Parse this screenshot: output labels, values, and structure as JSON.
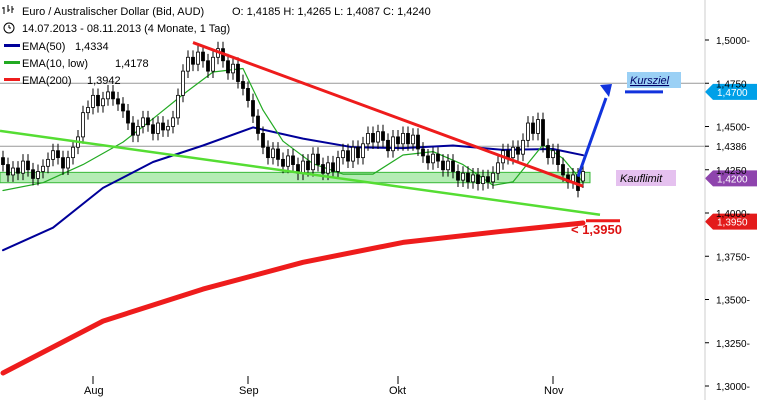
{
  "header": {
    "instrument": "Euro / Australischer Dollar (Bid, AUD)",
    "ohlc": "O: 1,4185  H: 1,4265  L: 1,4087  C: 1,4240",
    "period": "14.07.2013 - 08.11.2013 (4 Monate, 1 Tag)"
  },
  "legend": [
    {
      "label": "EMA(50)",
      "value": "1,4334",
      "color": "#000099"
    },
    {
      "label": "EMA(10, low)",
      "value": "1,4178",
      "color": "#22aa22"
    },
    {
      "label": "EMA(200)",
      "value": "1,3942",
      "color": "#ee1c1c"
    }
  ],
  "annotations": {
    "kursziel": "Kursziel",
    "kauflimit": "Kauflimit",
    "stop_label": "< 1,3950"
  },
  "chart_data": {
    "type": "line",
    "ylim": [
      1.3,
      1.51
    ],
    "y_ticks": [
      "1,5000-",
      "1,4750",
      "1,4500-",
      "1,4386",
      "1,4250",
      "1,4000-",
      "1,3750-",
      "1,3500-",
      "1,3250-",
      "1,3000-"
    ],
    "y_tick_values": [
      1.5,
      1.475,
      1.45,
      1.4386,
      1.425,
      1.4,
      1.375,
      1.35,
      1.325,
      1.3
    ],
    "x_ticks": [
      "Aug",
      "Sep",
      "Okt",
      "Nov"
    ],
    "x_tick_days": [
      18,
      49,
      79,
      110
    ],
    "price_badges": [
      {
        "label": "1,4700",
        "value": 1.47,
        "bg": "#00a0e8",
        "fg": "#ffffff"
      },
      {
        "label": "1,4200",
        "value": 1.42,
        "bg": "#8e44ad",
        "fg": "#ffffff"
      },
      {
        "label": "1,3950",
        "value": 1.395,
        "bg": "#e31b1b",
        "fg": "#ffffff"
      }
    ],
    "horizontal_levels": [
      1.475,
      1.4386
    ],
    "ema200": {
      "name": "EMA(200)",
      "days": [
        0,
        20,
        40,
        60,
        80,
        100,
        116
      ],
      "values": [
        1.3075,
        1.3375,
        1.356,
        1.3715,
        1.383,
        1.3895,
        1.3942
      ],
      "color": "#ee1c1c"
    },
    "ema50": {
      "name": "EMA(50)",
      "days": [
        0,
        10,
        20,
        30,
        40,
        50,
        60,
        70,
        80,
        90,
        100,
        110,
        116
      ],
      "values": [
        1.3785,
        1.3915,
        1.4145,
        1.4295,
        1.439,
        1.4495,
        1.443,
        1.438,
        1.4375,
        1.439,
        1.4365,
        1.437,
        1.4334
      ],
      "color": "#000099"
    },
    "ema10": {
      "name": "EMA(10, low)",
      "days": [
        0,
        8,
        16,
        24,
        30,
        36,
        42,
        48,
        52,
        56,
        62,
        68,
        74,
        80,
        86,
        92,
        98,
        102,
        108,
        112,
        116
      ],
      "values": [
        1.413,
        1.4175,
        1.428,
        1.441,
        1.4545,
        1.4685,
        1.4815,
        1.4835,
        1.4595,
        1.4415,
        1.4285,
        1.4225,
        1.4225,
        1.4335,
        1.4355,
        1.428,
        1.416,
        1.418,
        1.4395,
        1.4315,
        1.4178
      ],
      "color": "#22aa22"
    },
    "candles": [
      [
        0,
        1.432,
        1.428
      ],
      [
        1,
        1.428,
        1.422
      ],
      [
        2,
        1.422,
        1.426
      ],
      [
        3,
        1.426,
        1.423
      ],
      [
        4,
        1.423,
        1.43
      ],
      [
        5,
        1.43,
        1.425
      ],
      [
        6,
        1.425,
        1.42
      ],
      [
        7,
        1.42,
        1.424
      ],
      [
        8,
        1.424,
        1.427
      ],
      [
        9,
        1.427,
        1.431
      ],
      [
        10,
        1.431,
        1.436
      ],
      [
        11,
        1.436,
        1.432
      ],
      [
        12,
        1.432,
        1.426
      ],
      [
        13,
        1.426,
        1.432
      ],
      [
        14,
        1.432,
        1.438
      ],
      [
        15,
        1.438,
        1.444
      ],
      [
        16,
        1.444,
        1.458
      ],
      [
        17,
        1.458,
        1.461
      ],
      [
        18,
        1.461,
        1.468
      ],
      [
        19,
        1.468,
        1.462
      ],
      [
        20,
        1.462,
        1.466
      ],
      [
        21,
        1.466,
        1.47
      ],
      [
        22,
        1.47,
        1.466
      ],
      [
        23,
        1.466,
        1.463
      ],
      [
        24,
        1.463,
        1.459
      ],
      [
        25,
        1.459,
        1.452
      ],
      [
        26,
        1.452,
        1.445
      ],
      [
        27,
        1.445,
        1.45
      ],
      [
        28,
        1.45,
        1.455
      ],
      [
        29,
        1.455,
        1.451
      ],
      [
        30,
        1.451,
        1.446
      ],
      [
        31,
        1.446,
        1.452
      ],
      [
        32,
        1.452,
        1.448
      ],
      [
        33,
        1.448,
        1.45
      ],
      [
        34,
        1.45,
        1.455
      ],
      [
        35,
        1.455,
        1.468
      ],
      [
        36,
        1.468,
        1.482
      ],
      [
        37,
        1.482,
        1.49
      ],
      [
        38,
        1.49,
        1.486
      ],
      [
        39,
        1.486,
        1.493
      ],
      [
        40,
        1.493,
        1.488
      ],
      [
        41,
        1.488,
        1.482
      ],
      [
        42,
        1.482,
        1.49
      ],
      [
        43,
        1.49,
        1.495
      ],
      [
        44,
        1.495,
        1.488
      ],
      [
        45,
        1.488,
        1.481
      ],
      [
        46,
        1.481,
        1.486
      ],
      [
        47,
        1.486,
        1.476
      ],
      [
        48,
        1.476,
        1.472
      ],
      [
        49,
        1.472,
        1.465
      ],
      [
        50,
        1.465,
        1.456
      ],
      [
        51,
        1.456,
        1.446
      ],
      [
        52,
        1.446,
        1.438
      ],
      [
        53,
        1.438,
        1.432
      ],
      [
        54,
        1.432,
        1.437
      ],
      [
        55,
        1.437,
        1.431
      ],
      [
        56,
        1.431,
        1.427
      ],
      [
        57,
        1.427,
        1.433
      ],
      [
        58,
        1.433,
        1.428
      ],
      [
        59,
        1.428,
        1.423
      ],
      [
        60,
        1.423,
        1.43
      ],
      [
        61,
        1.43,
        1.425
      ],
      [
        62,
        1.425,
        1.434
      ],
      [
        63,
        1.434,
        1.428
      ],
      [
        64,
        1.428,
        1.423
      ],
      [
        65,
        1.423,
        1.429
      ],
      [
        66,
        1.429,
        1.424
      ],
      [
        67,
        1.424,
        1.432
      ],
      [
        68,
        1.432,
        1.436
      ],
      [
        69,
        1.436,
        1.43
      ],
      [
        70,
        1.43,
        1.438
      ],
      [
        71,
        1.438,
        1.432
      ],
      [
        72,
        1.432,
        1.44
      ],
      [
        73,
        1.44,
        1.446
      ],
      [
        74,
        1.446,
        1.441
      ],
      [
        75,
        1.441,
        1.447
      ],
      [
        76,
        1.447,
        1.442
      ],
      [
        77,
        1.442,
        1.436
      ],
      [
        78,
        1.436,
        1.444
      ],
      [
        79,
        1.444,
        1.44
      ],
      [
        80,
        1.44,
        1.446
      ],
      [
        81,
        1.446,
        1.44
      ],
      [
        82,
        1.44,
        1.445
      ],
      [
        83,
        1.445,
        1.437
      ],
      [
        84,
        1.437,
        1.433
      ],
      [
        85,
        1.433,
        1.429
      ],
      [
        86,
        1.429,
        1.434
      ],
      [
        87,
        1.434,
        1.43
      ],
      [
        88,
        1.43,
        1.425
      ],
      [
        89,
        1.425,
        1.43
      ],
      [
        90,
        1.43,
        1.424
      ],
      [
        91,
        1.424,
        1.419
      ],
      [
        92,
        1.419,
        1.423
      ],
      [
        93,
        1.423,
        1.418
      ],
      [
        94,
        1.418,
        1.422
      ],
      [
        95,
        1.422,
        1.417
      ],
      [
        96,
        1.417,
        1.421
      ],
      [
        97,
        1.421,
        1.418
      ],
      [
        98,
        1.418,
        1.423
      ],
      [
        99,
        1.423,
        1.429
      ],
      [
        100,
        1.429,
        1.436
      ],
      [
        101,
        1.436,
        1.432
      ],
      [
        102,
        1.432,
        1.438
      ],
      [
        103,
        1.438,
        1.434
      ],
      [
        104,
        1.434,
        1.442
      ],
      [
        105,
        1.442,
        1.452
      ],
      [
        106,
        1.452,
        1.446
      ],
      [
        107,
        1.446,
        1.454
      ],
      [
        108,
        1.454,
        1.439
      ],
      [
        109,
        1.439,
        1.432
      ],
      [
        110,
        1.432,
        1.436
      ],
      [
        111,
        1.436,
        1.428
      ],
      [
        112,
        1.428,
        1.422
      ],
      [
        113,
        1.422,
        1.418
      ],
      [
        114,
        1.418,
        1.422
      ],
      [
        115,
        1.422,
        1.413
      ],
      [
        116,
        1.4185,
        1.424
      ]
    ]
  }
}
